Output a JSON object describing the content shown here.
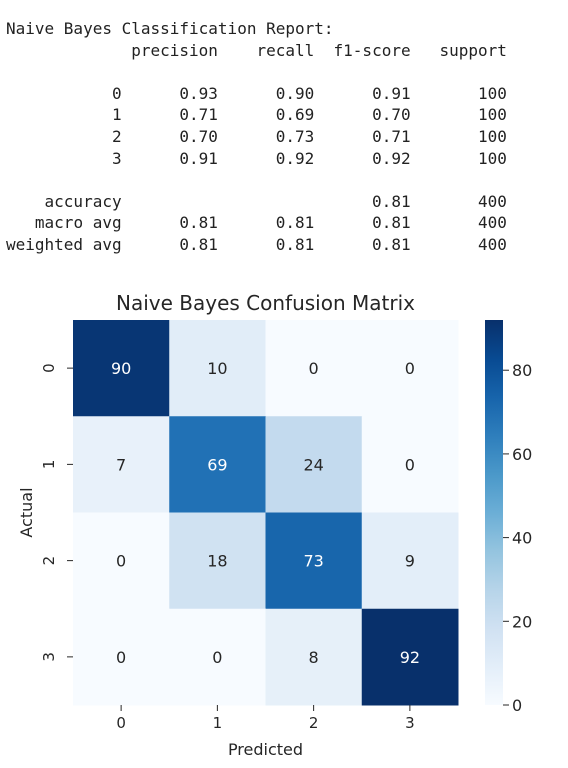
{
  "report": {
    "title": "Naive Bayes Classification Report:",
    "header": [
      "",
      "precision",
      "recall",
      "f1-score",
      "support"
    ],
    "rows": [
      [
        "0",
        "0.93",
        "0.90",
        "0.91",
        "100"
      ],
      [
        "1",
        "0.71",
        "0.69",
        "0.70",
        "100"
      ],
      [
        "2",
        "0.70",
        "0.73",
        "0.71",
        "100"
      ],
      [
        "3",
        "0.91",
        "0.92",
        "0.92",
        "100"
      ],
      null,
      [
        "accuracy",
        "",
        "",
        "0.81",
        "400"
      ],
      [
        "macro avg",
        "0.81",
        "0.81",
        "0.81",
        "400"
      ],
      [
        "weighted avg",
        "0.81",
        "0.81",
        "0.81",
        "400"
      ]
    ]
  },
  "chart_data": {
    "type": "heatmap",
    "title": "Naive Bayes Confusion Matrix",
    "xlabel": "Predicted",
    "ylabel": "Actual",
    "x_categories": [
      "0",
      "1",
      "2",
      "3"
    ],
    "y_categories": [
      "0",
      "1",
      "2",
      "3"
    ],
    "values": [
      [
        90,
        10,
        0,
        0
      ],
      [
        7,
        69,
        24,
        0
      ],
      [
        0,
        18,
        73,
        9
      ],
      [
        0,
        0,
        8,
        92
      ]
    ],
    "colormap": "Blues",
    "colorbar": {
      "ticks": [
        0,
        20,
        40,
        60,
        80
      ],
      "range": [
        0,
        92
      ]
    },
    "annotations": true
  }
}
